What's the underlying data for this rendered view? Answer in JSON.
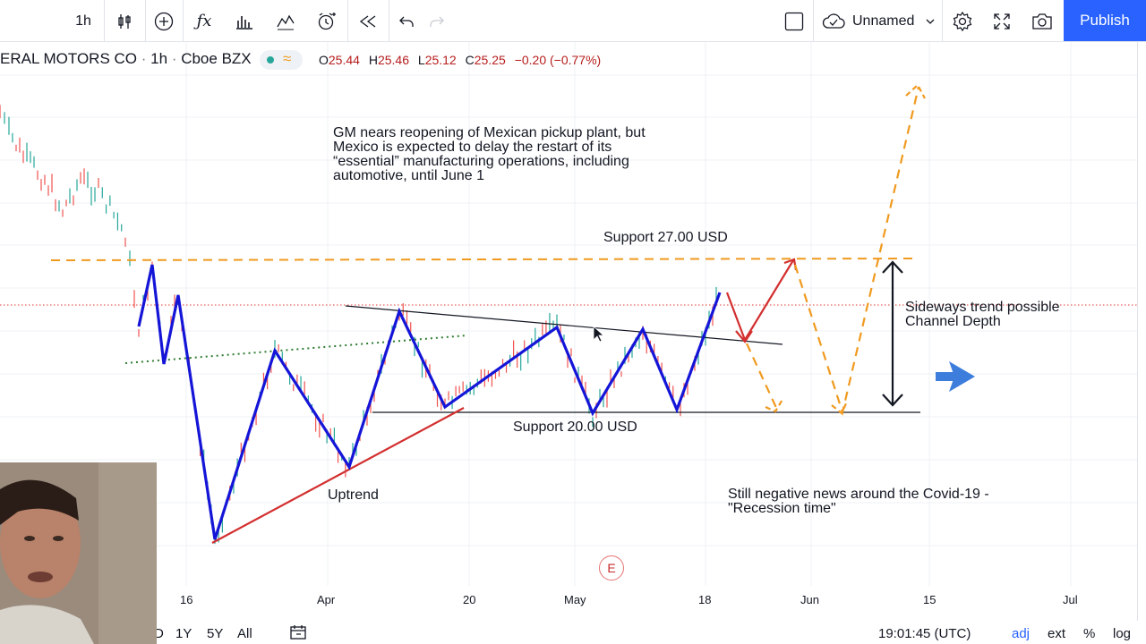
{
  "toolbar": {
    "interval": "1h",
    "layout_name": "Unnamed",
    "publish_label": "Publish",
    "icons": [
      "candles-icon",
      "add-circle-icon",
      "fx-icon",
      "bars-icon",
      "indicators-icon",
      "alert-icon",
      "replay-icon",
      "undo-icon",
      "redo-icon",
      "square-icon",
      "cloud-icon",
      "settings-icon",
      "fullscreen-icon",
      "camera-icon"
    ]
  },
  "symbol": {
    "name": "ERAL MOTORS CO",
    "interval": "1h",
    "exchange": "Cboe BZX",
    "ohlc": {
      "o_label": "O",
      "o": "25.44",
      "h_label": "H",
      "h": "25.46",
      "l_label": "L",
      "l": "25.12",
      "c_label": "C",
      "c": "25.25",
      "change": "−0.20 (−0.77%)"
    }
  },
  "annotations": {
    "news": [
      "GM nears reopening of Mexican pickup plant, but",
      "Mexico is expected to delay the restart of its",
      "“essential” manufacturing operations, including",
      "automotive, until June 1"
    ],
    "support_top": "Support 27.00 USD",
    "support_bottom": "Support 20.00 USD",
    "uptrend": "Uptrend",
    "sideways": [
      "Sideways trend possible",
      "Channel Depth"
    ],
    "covid": [
      "Still negative news around the Covid-19 -",
      "\"Recession time\""
    ],
    "earnings_badge": "E"
  },
  "x_axis": {
    "labels": [
      "16",
      "Apr",
      "20",
      "May",
      "18",
      "Jun",
      "15",
      "Jul"
    ]
  },
  "bottom_bar": {
    "range_partial": "D",
    "ranges": [
      "1Y",
      "5Y",
      "All"
    ],
    "time": "19:01:45 (UTC)",
    "adj": "adj",
    "ext": "ext",
    "percent": "%",
    "log": "log"
  },
  "colors": {
    "accent": "#2962ff",
    "zigzag": "#1515d8",
    "trend_red": "#d32f2f",
    "orange": "#f09a1f",
    "dotted_green": "#2e7d32"
  }
}
